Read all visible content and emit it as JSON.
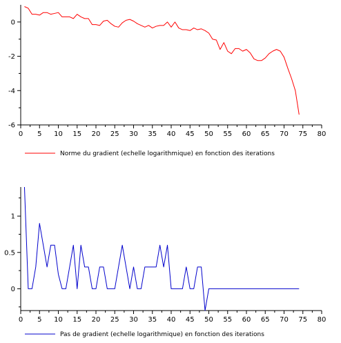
{
  "chart_data": [
    {
      "type": "line",
      "xlim": [
        0,
        80
      ],
      "ylim": [
        -6,
        1
      ],
      "xticks": [
        "0",
        "5",
        "10",
        "15",
        "20",
        "25",
        "30",
        "35",
        "40",
        "45",
        "50",
        "55",
        "60",
        "65",
        "70",
        "75",
        "80"
      ],
      "xtick_values": [
        0,
        5,
        10,
        15,
        20,
        25,
        30,
        35,
        40,
        45,
        50,
        55,
        60,
        65,
        70,
        75,
        80
      ],
      "yticks": [
        "-6",
        "-4",
        "-2",
        "0"
      ],
      "ytick_values": [
        -6,
        -4,
        -2,
        0
      ],
      "series": [
        {
          "name": "Norme du gradient (echelle logarithmique) en fonction des iterations",
          "color": "#ff0000",
          "x": [
            1,
            2,
            3,
            4,
            5,
            6,
            7,
            8,
            9,
            10,
            11,
            12,
            13,
            14,
            15,
            16,
            17,
            18,
            19,
            20,
            21,
            22,
            23,
            24,
            25,
            26,
            27,
            28,
            29,
            30,
            31,
            32,
            33,
            34,
            35,
            36,
            37,
            38,
            39,
            40,
            41,
            42,
            43,
            44,
            45,
            46,
            47,
            48,
            49,
            50,
            51,
            52,
            53,
            54,
            55,
            56,
            57,
            58,
            59,
            60,
            61,
            62,
            63,
            64,
            65,
            66,
            67,
            68,
            69,
            70,
            71,
            72,
            73,
            74
          ],
          "y": [
            0.9,
            0.8,
            0.45,
            0.45,
            0.4,
            0.55,
            0.55,
            0.45,
            0.5,
            0.55,
            0.3,
            0.3,
            0.3,
            0.2,
            0.45,
            0.3,
            0.2,
            0.2,
            -0.15,
            -0.15,
            -0.2,
            0.05,
            0.1,
            -0.1,
            -0.25,
            -0.3,
            -0.05,
            0.1,
            0.15,
            0.05,
            -0.1,
            -0.2,
            -0.3,
            -0.2,
            -0.35,
            -0.25,
            -0.2,
            -0.2,
            0.0,
            -0.3,
            0.0,
            -0.35,
            -0.45,
            -0.45,
            -0.5,
            -0.35,
            -0.45,
            -0.4,
            -0.5,
            -0.65,
            -1.0,
            -1.05,
            -1.6,
            -1.2,
            -1.7,
            -1.85,
            -1.55,
            -1.55,
            -1.7,
            -1.6,
            -1.8,
            -2.15,
            -2.25,
            -2.25,
            -2.1,
            -1.85,
            -1.7,
            -1.6,
            -1.7,
            -2.05,
            -2.7,
            -3.3,
            -4.0,
            -5.4
          ]
        }
      ]
    },
    {
      "type": "line",
      "xlim": [
        0,
        80
      ],
      "ylim": [
        -0.3,
        1.4
      ],
      "xticks": [
        "0",
        "5",
        "10",
        "15",
        "20",
        "25",
        "30",
        "35",
        "40",
        "45",
        "50",
        "55",
        "60",
        "65",
        "70",
        "75",
        "80"
      ],
      "xtick_values": [
        0,
        5,
        10,
        15,
        20,
        25,
        30,
        35,
        40,
        45,
        50,
        55,
        60,
        65,
        70,
        75,
        80
      ],
      "yticks": [
        "0",
        "0.5",
        "1"
      ],
      "ytick_values": [
        0,
        0.5,
        1
      ],
      "series": [
        {
          "name": "Pas de gradient (echelle logarithmique) en fonction des iterations",
          "color": "#0000cc",
          "x": [
            1,
            2,
            3,
            4,
            5,
            6,
            7,
            8,
            9,
            10,
            11,
            12,
            13,
            14,
            15,
            16,
            17,
            18,
            19,
            20,
            21,
            22,
            23,
            24,
            25,
            26,
            27,
            28,
            29,
            30,
            31,
            32,
            33,
            34,
            35,
            36,
            37,
            38,
            39,
            40,
            41,
            42,
            43,
            44,
            45,
            46,
            47,
            48,
            49,
            50,
            51,
            52,
            53,
            54,
            55,
            56,
            57,
            58,
            59,
            60,
            61,
            62,
            63,
            64,
            65,
            66,
            67,
            68,
            69,
            70,
            71,
            72,
            73,
            74
          ],
          "y": [
            1.4,
            0.0,
            0.0,
            0.3,
            0.9,
            0.6,
            0.3,
            0.6,
            0.6,
            0.2,
            0.0,
            0.0,
            0.3,
            0.6,
            0.0,
            0.6,
            0.3,
            0.3,
            0.0,
            0.0,
            0.3,
            0.3,
            0.0,
            0.0,
            0.0,
            0.3,
            0.6,
            0.3,
            0.0,
            0.3,
            0.0,
            0.0,
            0.3,
            0.3,
            0.3,
            0.3,
            0.6,
            0.3,
            0.6,
            0.0,
            0.0,
            0.0,
            0.0,
            0.3,
            0.0,
            0.0,
            0.3,
            0.3,
            -0.3,
            0.0,
            0.0,
            0.0,
            0.0,
            0.0,
            0.0,
            0.0,
            0.0,
            0.0,
            0.0,
            0.0,
            0.0,
            0.0,
            0.0,
            0.0,
            0.0,
            0.0,
            0.0,
            0.0,
            0.0,
            0.0,
            0.0,
            0.0,
            0.0,
            0.0
          ]
        }
      ]
    }
  ]
}
